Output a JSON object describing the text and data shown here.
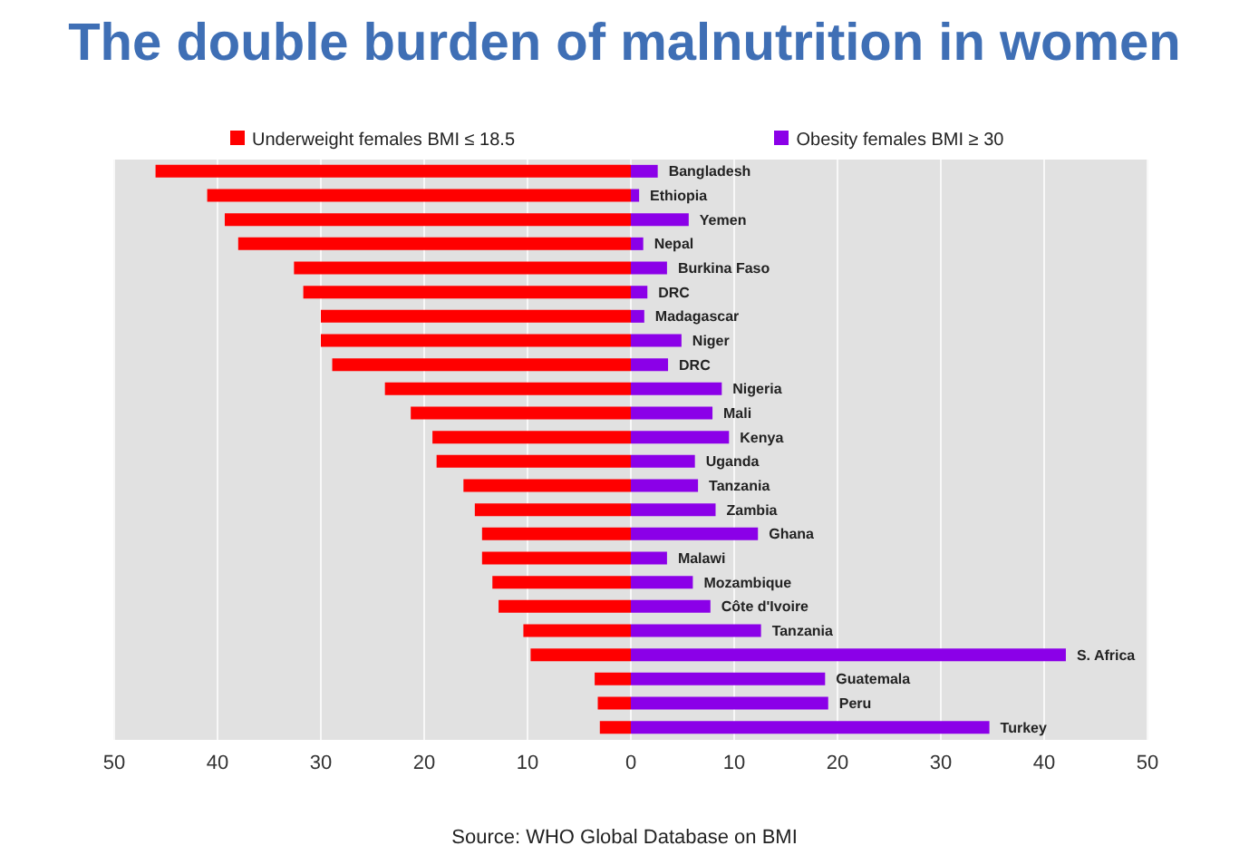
{
  "chart_data": {
    "type": "bar",
    "orientation": "horizontal",
    "stacked": true,
    "title": "The double burden of malnutrition in women",
    "categories": [
      "Bangladesh",
      "Ethiopia",
      "Yemen",
      "Nepal",
      "Burkina Faso",
      "DRC",
      "Madagascar",
      "Niger",
      "DRC",
      "Nigeria",
      "Mali",
      "Kenya",
      "Uganda",
      "Tanzania",
      "Zambia",
      "Ghana",
      "Malawi",
      "Mozambique",
      "Côte d'Ivoire",
      "Tanzania",
      "S. Africa",
      "Guatemala",
      "Peru",
      "Turkey"
    ],
    "series": [
      {
        "name": "Underweight females BMI ≤ 18.5",
        "color": "#ff0000",
        "values": [
          -46,
          -41,
          -39.3,
          -38,
          -32.6,
          -31.7,
          -30,
          -30,
          -28.9,
          -23.8,
          -21.3,
          -19.2,
          -18.8,
          -16.2,
          -15.1,
          -14.4,
          -14.4,
          -13.4,
          -12.8,
          -10.4,
          -9.7,
          -3.5,
          -3.2,
          -3
        ]
      },
      {
        "name": "Obesity females BMI ≥ 30",
        "color": "#8b00e8",
        "values": [
          2.6,
          0.8,
          5.6,
          1.2,
          3.5,
          1.6,
          1.3,
          4.9,
          3.6,
          8.8,
          7.9,
          9.5,
          6.2,
          6.5,
          8.2,
          12.3,
          3.5,
          6,
          7.7,
          12.6,
          42.1,
          18.8,
          19.1,
          34.7
        ]
      }
    ],
    "xlim": [
      -50,
      50
    ],
    "xticks": [
      {
        "value": -50,
        "label": "50"
      },
      {
        "value": -40,
        "label": "40"
      },
      {
        "value": -30,
        "label": "30"
      },
      {
        "value": -20,
        "label": "20"
      },
      {
        "value": -10,
        "label": "10"
      },
      0,
      10,
      20,
      30,
      40,
      50
    ],
    "grid": "x",
    "legend": "top",
    "annotations": [
      "Source: WHO Global Database on BMI"
    ]
  }
}
